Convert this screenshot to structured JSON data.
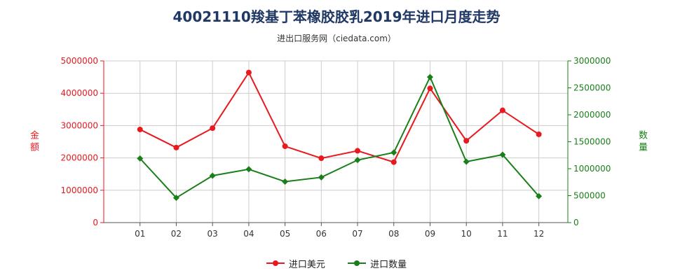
{
  "title": "40021110羧基丁苯橡胶胶乳2019年进口月度走势",
  "subtitle": "进出口服务网（ciedata.com）",
  "chart_data": {
    "type": "line",
    "categories": [
      "01",
      "02",
      "03",
      "04",
      "05",
      "06",
      "07",
      "08",
      "09",
      "10",
      "11",
      "12"
    ],
    "series": [
      {
        "name": "进口美元",
        "axis": "left",
        "color": "#e8191f",
        "values": [
          2880000,
          2320000,
          2920000,
          4640000,
          2360000,
          1990000,
          2220000,
          1870000,
          4150000,
          2530000,
          3470000,
          2730000
        ]
      },
      {
        "name": "进口数量",
        "axis": "right",
        "color": "#1a7f1a",
        "values": [
          1190000,
          460000,
          870000,
          990000,
          760000,
          840000,
          1160000,
          1300000,
          2700000,
          1130000,
          1260000,
          490000
        ]
      }
    ],
    "y_left": {
      "label": "金额",
      "min": 0,
      "max": 5000000,
      "ticks": [
        "0",
        "1000000",
        "2000000",
        "3000000",
        "4000000",
        "5000000"
      ],
      "color": "#e8191f"
    },
    "y_right": {
      "label": "数量",
      "min": 0,
      "max": 3000000,
      "ticks": [
        "0",
        "500000",
        "1000000",
        "1500000",
        "2000000",
        "2500000",
        "3000000"
      ],
      "color": "#1a7f1a"
    },
    "grid": true,
    "legend_position": "bottom"
  }
}
